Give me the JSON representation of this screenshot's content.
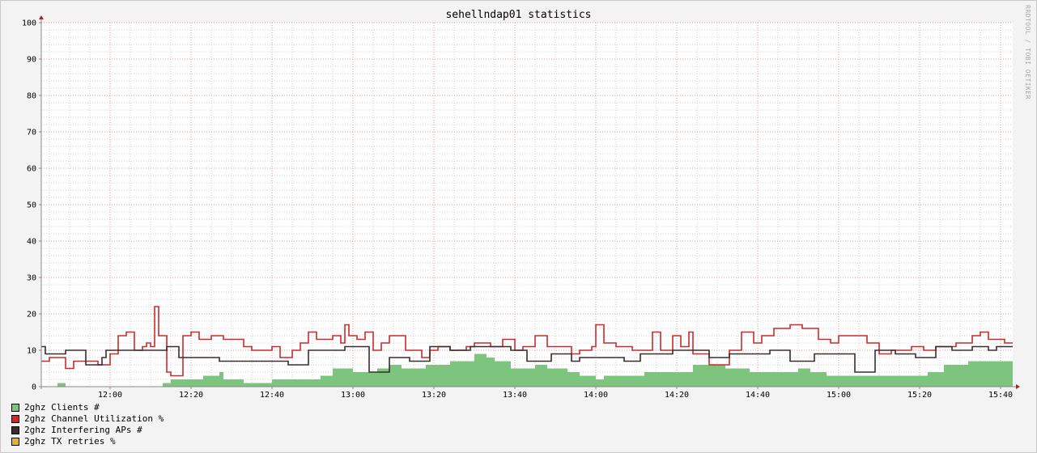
{
  "chart_data": {
    "type": "line",
    "title": "sehellndap01 statistics",
    "watermark": "RRDTOOL / TOBI OETIKER",
    "background": "#ffffff",
    "x_ticks": [
      "12:00",
      "12:20",
      "12:40",
      "13:00",
      "13:20",
      "13:40",
      "14:00",
      "14:20",
      "14:40",
      "15:00",
      "15:20",
      "15:40"
    ],
    "xlim": [
      "11:43",
      "15:43"
    ],
    "y_ticks": [
      "0",
      "10",
      "20",
      "30",
      "40",
      "50",
      "60",
      "70",
      "80",
      "90",
      "100"
    ],
    "ylim": [
      0,
      100
    ],
    "grid": true,
    "legend_position": "bottom-left",
    "series": [
      {
        "name": "2ghz Clients #",
        "kind": "area",
        "color": "#7dc47f",
        "points": [
          [
            "11:43",
            0
          ],
          [
            "11:47",
            1
          ],
          [
            "11:49",
            0
          ],
          [
            "12:13",
            1
          ],
          [
            "12:15",
            2
          ],
          [
            "12:20",
            2
          ],
          [
            "12:23",
            3
          ],
          [
            "12:27",
            4
          ],
          [
            "12:28",
            2
          ],
          [
            "12:33",
            1
          ],
          [
            "12:40",
            2
          ],
          [
            "12:44",
            2
          ],
          [
            "12:46",
            2
          ],
          [
            "12:52",
            3
          ],
          [
            "12:55",
            5
          ],
          [
            "12:57",
            5
          ],
          [
            "13:00",
            4
          ],
          [
            "13:06",
            5
          ],
          [
            "13:09",
            6
          ],
          [
            "13:12",
            5
          ],
          [
            "13:15",
            5
          ],
          [
            "13:18",
            6
          ],
          [
            "13:24",
            7
          ],
          [
            "13:27",
            7
          ],
          [
            "13:30",
            9
          ],
          [
            "13:33",
            8
          ],
          [
            "13:35",
            7
          ],
          [
            "13:39",
            5
          ],
          [
            "13:45",
            6
          ],
          [
            "13:48",
            5
          ],
          [
            "13:53",
            4
          ],
          [
            "13:56",
            3
          ],
          [
            "14:00",
            2
          ],
          [
            "14:02",
            3
          ],
          [
            "14:12",
            4
          ],
          [
            "14:24",
            6
          ],
          [
            "14:32",
            5
          ],
          [
            "14:38",
            4
          ],
          [
            "14:50",
            5
          ],
          [
            "14:53",
            4
          ],
          [
            "14:57",
            3
          ],
          [
            "15:12",
            3
          ],
          [
            "15:22",
            4
          ],
          [
            "15:26",
            6
          ],
          [
            "15:32",
            7
          ],
          [
            "15:43",
            7
          ]
        ]
      },
      {
        "name": "2ghz Channel Utilization %",
        "kind": "line",
        "color": "#cc2a2a",
        "points": [
          [
            "11:43",
            7
          ],
          [
            "11:45",
            8
          ],
          [
            "11:49",
            5
          ],
          [
            "11:51",
            7
          ],
          [
            "11:57",
            6
          ],
          [
            "12:00",
            9
          ],
          [
            "12:02",
            14
          ],
          [
            "12:04",
            15
          ],
          [
            "12:06",
            10
          ],
          [
            "12:08",
            11
          ],
          [
            "12:09",
            12
          ],
          [
            "12:10",
            11
          ],
          [
            "12:11",
            22
          ],
          [
            "12:12",
            14
          ],
          [
            "12:14",
            4
          ],
          [
            "12:15",
            3
          ],
          [
            "12:18",
            14
          ],
          [
            "12:20",
            15
          ],
          [
            "12:22",
            13
          ],
          [
            "12:25",
            14
          ],
          [
            "12:28",
            13
          ],
          [
            "12:33",
            11
          ],
          [
            "12:35",
            10
          ],
          [
            "12:40",
            11
          ],
          [
            "12:42",
            8
          ],
          [
            "12:45",
            10
          ],
          [
            "12:47",
            12
          ],
          [
            "12:49",
            15
          ],
          [
            "12:51",
            13
          ],
          [
            "12:55",
            14
          ],
          [
            "12:57",
            12
          ],
          [
            "12:58",
            17
          ],
          [
            "12:59",
            14
          ],
          [
            "13:01",
            13
          ],
          [
            "13:03",
            15
          ],
          [
            "13:05",
            10
          ],
          [
            "13:07",
            12
          ],
          [
            "13:09",
            14
          ],
          [
            "13:13",
            10
          ],
          [
            "13:17",
            8
          ],
          [
            "13:19",
            10
          ],
          [
            "13:21",
            11
          ],
          [
            "13:24",
            10
          ],
          [
            "13:28",
            11
          ],
          [
            "13:30",
            12
          ],
          [
            "13:34",
            11
          ],
          [
            "13:37",
            13
          ],
          [
            "13:40",
            10
          ],
          [
            "13:42",
            11
          ],
          [
            "13:45",
            14
          ],
          [
            "13:48",
            11
          ],
          [
            "13:54",
            9
          ],
          [
            "13:56",
            10
          ],
          [
            "13:59",
            11
          ],
          [
            "14:00",
            17
          ],
          [
            "14:02",
            12
          ],
          [
            "14:05",
            11
          ],
          [
            "14:09",
            10
          ],
          [
            "14:14",
            15
          ],
          [
            "14:16",
            10
          ],
          [
            "14:19",
            14
          ],
          [
            "14:21",
            11
          ],
          [
            "14:23",
            15
          ],
          [
            "14:24",
            9
          ],
          [
            "14:28",
            6
          ],
          [
            "14:33",
            10
          ],
          [
            "14:36",
            15
          ],
          [
            "14:39",
            12
          ],
          [
            "14:41",
            14
          ],
          [
            "14:44",
            16
          ],
          [
            "14:48",
            17
          ],
          [
            "14:51",
            16
          ],
          [
            "14:55",
            13
          ],
          [
            "14:58",
            12
          ],
          [
            "15:00",
            14
          ],
          [
            "15:07",
            12
          ],
          [
            "15:10",
            9
          ],
          [
            "15:13",
            10
          ],
          [
            "15:18",
            11
          ],
          [
            "15:21",
            10
          ],
          [
            "15:24",
            11
          ],
          [
            "15:29",
            12
          ],
          [
            "15:33",
            14
          ],
          [
            "15:35",
            15
          ],
          [
            "15:37",
            13
          ],
          [
            "15:41",
            12
          ]
        ]
      },
      {
        "name": "2ghz Interfering APs #",
        "kind": "line",
        "color": "#3a2d2d",
        "points": [
          [
            "11:43",
            11
          ],
          [
            "11:44",
            9
          ],
          [
            "11:49",
            10
          ],
          [
            "11:54",
            6
          ],
          [
            "11:58",
            8
          ],
          [
            "11:59",
            10
          ],
          [
            "12:04",
            10
          ],
          [
            "12:14",
            11
          ],
          [
            "12:17",
            8
          ],
          [
            "12:27",
            7
          ],
          [
            "12:44",
            6
          ],
          [
            "12:49",
            10
          ],
          [
            "12:58",
            11
          ],
          [
            "13:04",
            4
          ],
          [
            "13:09",
            8
          ],
          [
            "13:14",
            7
          ],
          [
            "13:19",
            11
          ],
          [
            "13:24",
            10
          ],
          [
            "13:29",
            11
          ],
          [
            "13:39",
            10
          ],
          [
            "13:43",
            7
          ],
          [
            "13:49",
            9
          ],
          [
            "13:54",
            7
          ],
          [
            "13:56",
            8
          ],
          [
            "14:07",
            7
          ],
          [
            "14:11",
            9
          ],
          [
            "14:19",
            10
          ],
          [
            "14:23",
            10
          ],
          [
            "14:28",
            8
          ],
          [
            "14:33",
            9
          ],
          [
            "14:43",
            10
          ],
          [
            "14:48",
            7
          ],
          [
            "14:54",
            9
          ],
          [
            "15:04",
            4
          ],
          [
            "15:09",
            10
          ],
          [
            "15:14",
            9
          ],
          [
            "15:19",
            8
          ],
          [
            "15:24",
            11
          ],
          [
            "15:28",
            10
          ],
          [
            "15:33",
            11
          ],
          [
            "15:37",
            10
          ],
          [
            "15:39",
            11
          ]
        ]
      },
      {
        "name": "2ghz TX retries %",
        "kind": "line",
        "color": "#e0b23c",
        "points": []
      }
    ]
  }
}
